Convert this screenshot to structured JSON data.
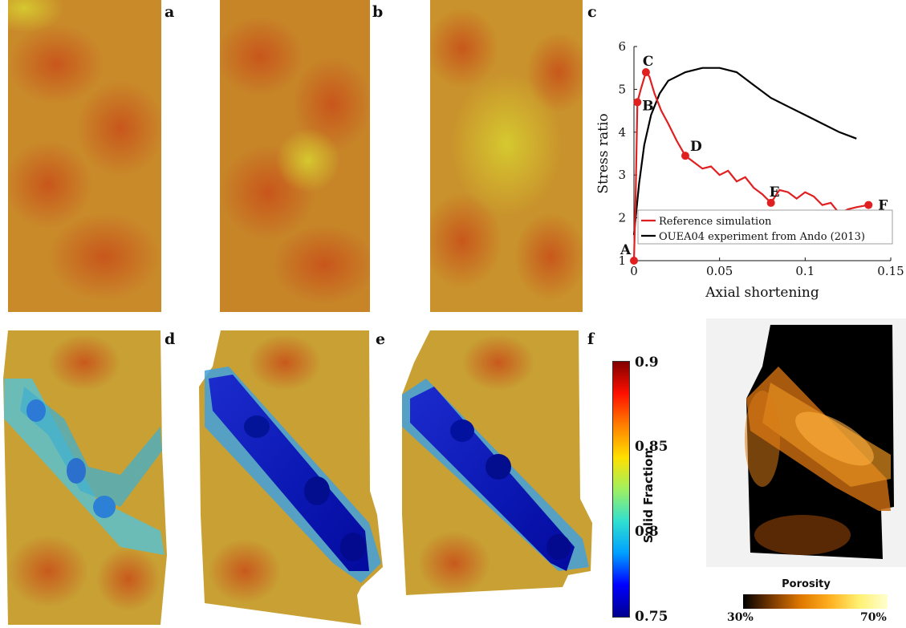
{
  "panels": {
    "labels": [
      "a",
      "b",
      "c",
      "d",
      "e",
      "f"
    ]
  },
  "colorbar": {
    "title": "Solid Fraction",
    "ticks": [
      "0.9",
      "0.85",
      "0.8",
      "0.75"
    ],
    "min": 0.75,
    "max": 0.9,
    "colors": [
      "#00008f",
      "#0000ff",
      "#00a0ff",
      "#30e0d0",
      "#a0f060",
      "#ffe000",
      "#ff8000",
      "#ff1000",
      "#800000"
    ]
  },
  "porosity": {
    "title": "Porosity",
    "min_label": "30%",
    "max_label": "70%",
    "colors": [
      "#000000",
      "#7a3a00",
      "#e07800",
      "#ffb020",
      "#fff070",
      "#ffffd0"
    ]
  },
  "chart_data": {
    "type": "line",
    "xlabel": "Axial shortening",
    "ylabel": "Stress ratio",
    "xlim": [
      0,
      0.15
    ],
    "ylim": [
      1,
      6
    ],
    "xticks": [
      "0",
      "0.05",
      "0.1",
      "0.15"
    ],
    "yticks": [
      "1",
      "2",
      "3",
      "4",
      "5",
      "6"
    ],
    "series": [
      {
        "name": "Reference simulation",
        "color": "#e02020",
        "points": [
          [
            0,
            1.0
          ],
          [
            0.001,
            2.5
          ],
          [
            0.002,
            4.7
          ],
          [
            0.004,
            5.0
          ],
          [
            0.007,
            5.4
          ],
          [
            0.009,
            5.3
          ],
          [
            0.012,
            4.9
          ],
          [
            0.016,
            4.5
          ],
          [
            0.02,
            4.2
          ],
          [
            0.025,
            3.8
          ],
          [
            0.03,
            3.45
          ],
          [
            0.035,
            3.3
          ],
          [
            0.04,
            3.15
          ],
          [
            0.045,
            3.2
          ],
          [
            0.05,
            3.0
          ],
          [
            0.055,
            3.1
          ],
          [
            0.06,
            2.85
          ],
          [
            0.065,
            2.95
          ],
          [
            0.07,
            2.7
          ],
          [
            0.075,
            2.55
          ],
          [
            0.08,
            2.35
          ],
          [
            0.085,
            2.65
          ],
          [
            0.09,
            2.6
          ],
          [
            0.095,
            2.45
          ],
          [
            0.1,
            2.6
          ],
          [
            0.105,
            2.5
          ],
          [
            0.11,
            2.3
          ],
          [
            0.115,
            2.35
          ],
          [
            0.12,
            2.1
          ],
          [
            0.125,
            2.2
          ],
          [
            0.13,
            2.25
          ],
          [
            0.137,
            2.3
          ]
        ]
      },
      {
        "name": "OUEA04 experiment from Ando (2013)",
        "color": "#000000",
        "points": [
          [
            0,
            1.6
          ],
          [
            0.003,
            2.8
          ],
          [
            0.006,
            3.7
          ],
          [
            0.01,
            4.4
          ],
          [
            0.015,
            4.9
          ],
          [
            0.02,
            5.2
          ],
          [
            0.03,
            5.4
          ],
          [
            0.04,
            5.5
          ],
          [
            0.05,
            5.5
          ],
          [
            0.06,
            5.4
          ],
          [
            0.07,
            5.1
          ],
          [
            0.08,
            4.8
          ],
          [
            0.09,
            4.6
          ],
          [
            0.1,
            4.4
          ],
          [
            0.11,
            4.2
          ],
          [
            0.12,
            4.0
          ],
          [
            0.13,
            3.85
          ]
        ]
      }
    ],
    "annotations": [
      {
        "label": "A",
        "x": 0,
        "y": 1.0
      },
      {
        "label": "B",
        "x": 0.002,
        "y": 4.7
      },
      {
        "label": "C",
        "x": 0.007,
        "y": 5.4
      },
      {
        "label": "D",
        "x": 0.03,
        "y": 3.45
      },
      {
        "label": "E",
        "x": 0.08,
        "y": 2.35
      },
      {
        "label": "F",
        "x": 0.137,
        "y": 2.3
      }
    ],
    "legend_position": "bottom-right",
    "grid": false
  }
}
